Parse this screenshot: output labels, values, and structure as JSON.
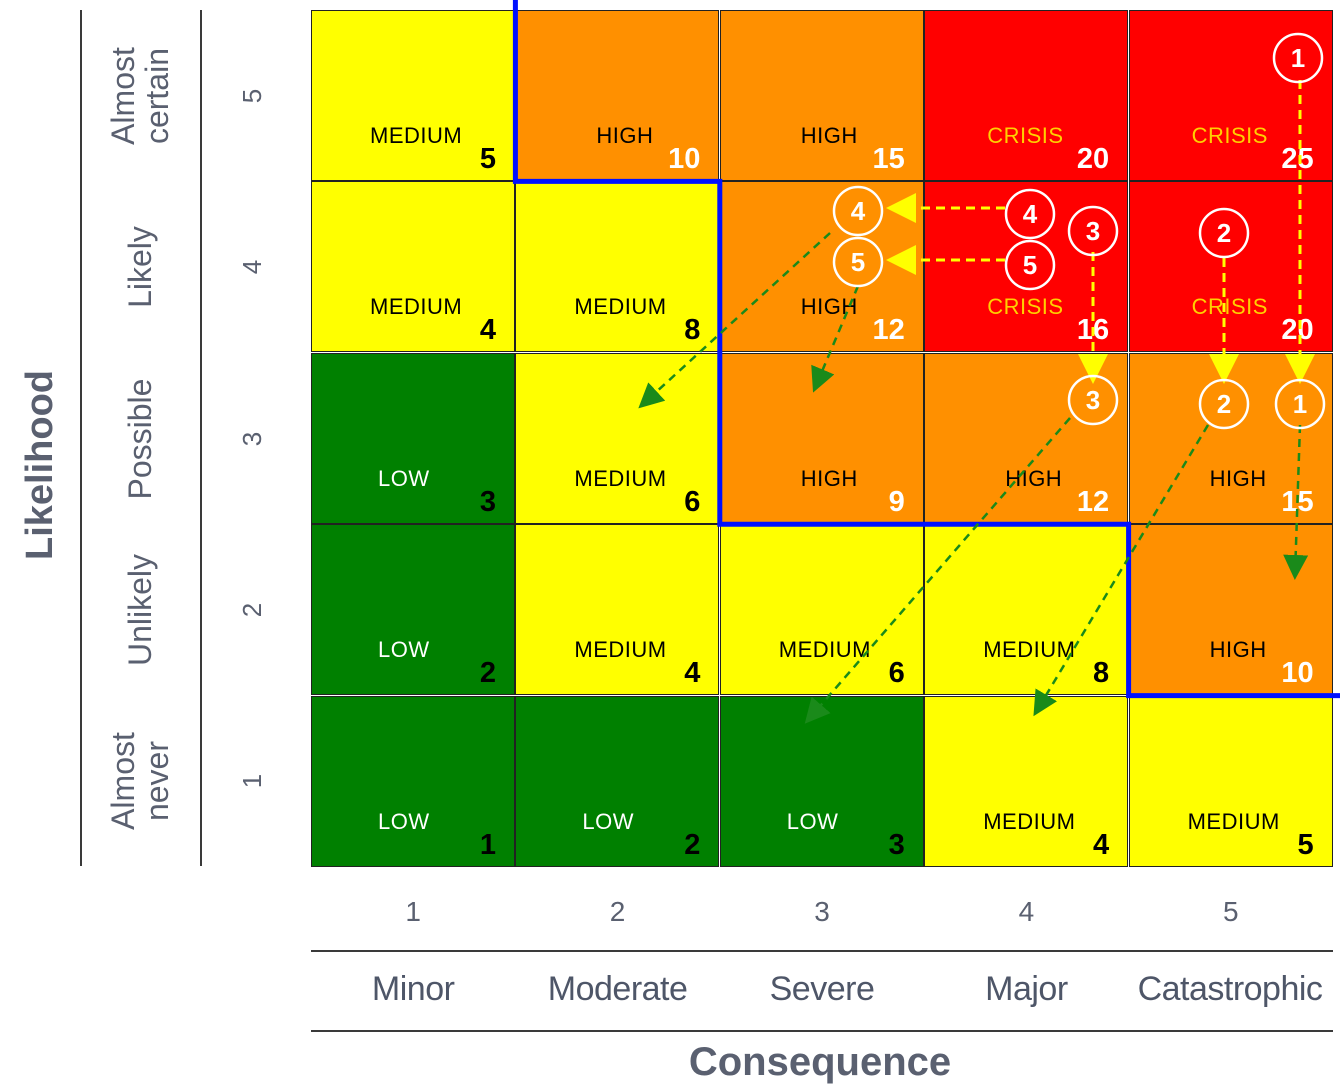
{
  "axes": {
    "y_title": "Likelihood",
    "x_title": "Consequence",
    "likelihood_levels": [
      {
        "num": "5",
        "lines": [
          "Almost",
          "certain"
        ]
      },
      {
        "num": "4",
        "lines": [
          "Likely"
        ]
      },
      {
        "num": "3",
        "lines": [
          "Possible"
        ]
      },
      {
        "num": "2",
        "lines": [
          "Unlikely"
        ]
      },
      {
        "num": "1",
        "lines": [
          "Almost",
          "never"
        ]
      }
    ],
    "consequence_levels": [
      {
        "num": "1",
        "name": "Minor"
      },
      {
        "num": "2",
        "name": "Moderate"
      },
      {
        "num": "3",
        "name": "Severe"
      },
      {
        "num": "4",
        "name": "Major"
      },
      {
        "num": "5",
        "name": "Catastrophic"
      }
    ]
  },
  "colors": {
    "low": "#008000",
    "medium": "#ffff00",
    "high": "#ff9000",
    "crisis": "#ff0000",
    "boundary": "#0010ff",
    "arrow_yellow": "#ffff00",
    "arrow_green": "#1a8a1a"
  },
  "matrix": [
    [
      {
        "level": "MEDIUM",
        "score": "5"
      },
      {
        "level": "HIGH",
        "score": "10"
      },
      {
        "level": "HIGH",
        "score": "15"
      },
      {
        "level": "CRISIS",
        "score": "20"
      },
      {
        "level": "CRISIS",
        "score": "25"
      }
    ],
    [
      {
        "level": "MEDIUM",
        "score": "4"
      },
      {
        "level": "MEDIUM",
        "score": "8"
      },
      {
        "level": "HIGH",
        "score": "12"
      },
      {
        "level": "CRISIS",
        "score": "16"
      },
      {
        "level": "CRISIS",
        "score": "20"
      }
    ],
    [
      {
        "level": "LOW",
        "score": "3"
      },
      {
        "level": "MEDIUM",
        "score": "6"
      },
      {
        "level": "HIGH",
        "score": "9"
      },
      {
        "level": "HIGH",
        "score": "12"
      },
      {
        "level": "HIGH",
        "score": "15"
      }
    ],
    [
      {
        "level": "LOW",
        "score": "2"
      },
      {
        "level": "MEDIUM",
        "score": "4"
      },
      {
        "level": "MEDIUM",
        "score": "6"
      },
      {
        "level": "MEDIUM",
        "score": "8"
      },
      {
        "level": "HIGH",
        "score": "10"
      }
    ],
    [
      {
        "level": "LOW",
        "score": "1"
      },
      {
        "level": "LOW",
        "score": "2"
      },
      {
        "level": "LOW",
        "score": "3"
      },
      {
        "level": "MEDIUM",
        "score": "4"
      },
      {
        "level": "MEDIUM",
        "score": "5"
      }
    ]
  ],
  "markers": [
    {
      "label": "1",
      "from": {
        "consequence": 5,
        "likelihood": 5
      },
      "to": {
        "consequence": 5,
        "likelihood": 3
      }
    },
    {
      "label": "2",
      "from": {
        "consequence": 5,
        "likelihood": 4
      },
      "to": {
        "consequence": 5,
        "likelihood": 3
      }
    },
    {
      "label": "3",
      "from": {
        "consequence": 4,
        "likelihood": 4
      },
      "to": {
        "consequence": 4,
        "likelihood": 3
      }
    },
    {
      "label": "4",
      "from": {
        "consequence": 4,
        "likelihood": 4
      },
      "to": {
        "consequence": 3,
        "likelihood": 4
      }
    },
    {
      "label": "5",
      "from": {
        "consequence": 4,
        "likelihood": 4
      },
      "to": {
        "consequence": 3,
        "likelihood": 4
      }
    }
  ]
}
